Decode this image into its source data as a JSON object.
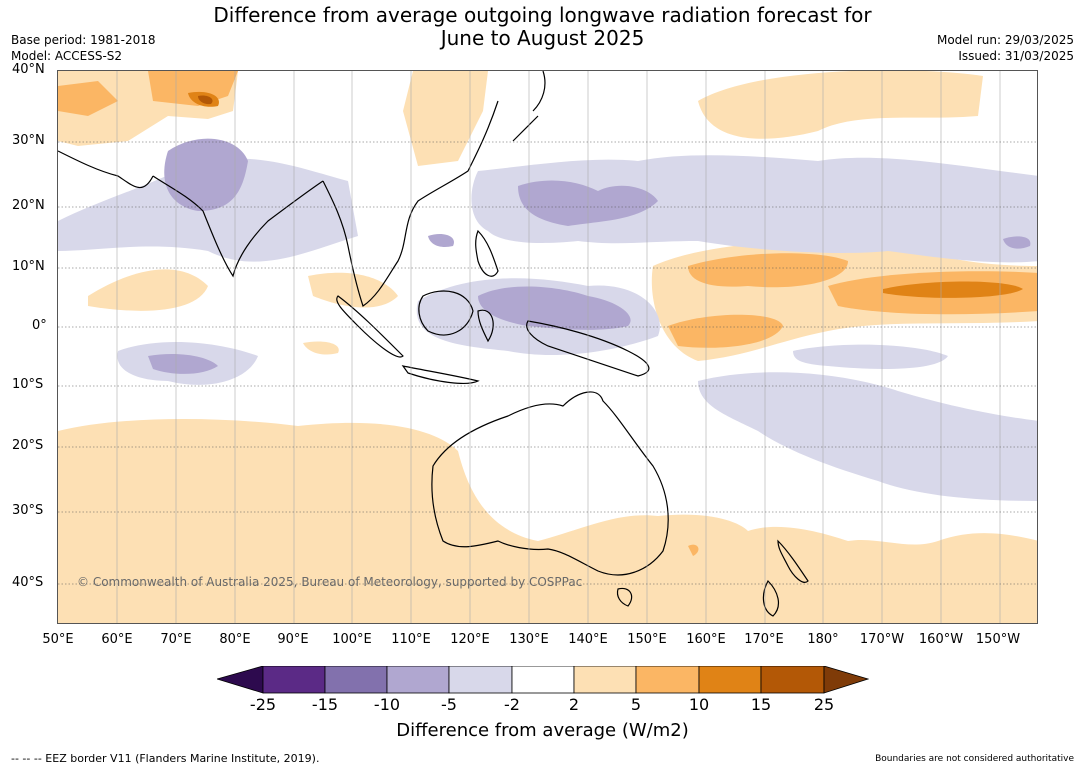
{
  "header": {
    "title_line1": "Difference from average outgoing longwave radiation forecast for",
    "title_line2": "June to August 2025",
    "base_period": "Base period: 1981-2018",
    "model": "Model: ACCESS-S2",
    "model_run": "Model run: 29/03/2025",
    "issued": "Issued: 31/03/2025"
  },
  "map": {
    "lat_labels": [
      "40°N",
      "30°N",
      "20°N",
      "10°N",
      "0°",
      "10°S",
      "20°S",
      "30°S",
      "40°S"
    ],
    "lon_labels": [
      "50°E",
      "60°E",
      "70°E",
      "80°E",
      "90°E",
      "100°E",
      "110°E",
      "120°E",
      "130°E",
      "140°E",
      "150°E",
      "160°E",
      "170°E",
      "180°",
      "170°W",
      "160°W",
      "150°W"
    ],
    "copyright": "© Commonwealth of Australia 2025, Bureau of Meteorology, supported by COSPPac"
  },
  "colorbar": {
    "ticks": [
      "-25",
      "-15",
      "-10",
      "-5",
      "-2",
      "2",
      "5",
      "10",
      "15",
      "25"
    ],
    "colors": [
      "#2d0a4e",
      "#5b2a86",
      "#8271ad",
      "#b0a7d0",
      "#d8d8ea",
      "#ffffff",
      "#fde0b4",
      "#fbb664",
      "#e08316",
      "#b35806",
      "#7f3b08"
    ],
    "label": "Difference from average (W/m2)"
  },
  "footer": {
    "eez": "--  --  -- EEZ border V11 (Flanders Marine Institute, 2019).",
    "disclaimer": "Boundaries are not considered authoritative"
  }
}
